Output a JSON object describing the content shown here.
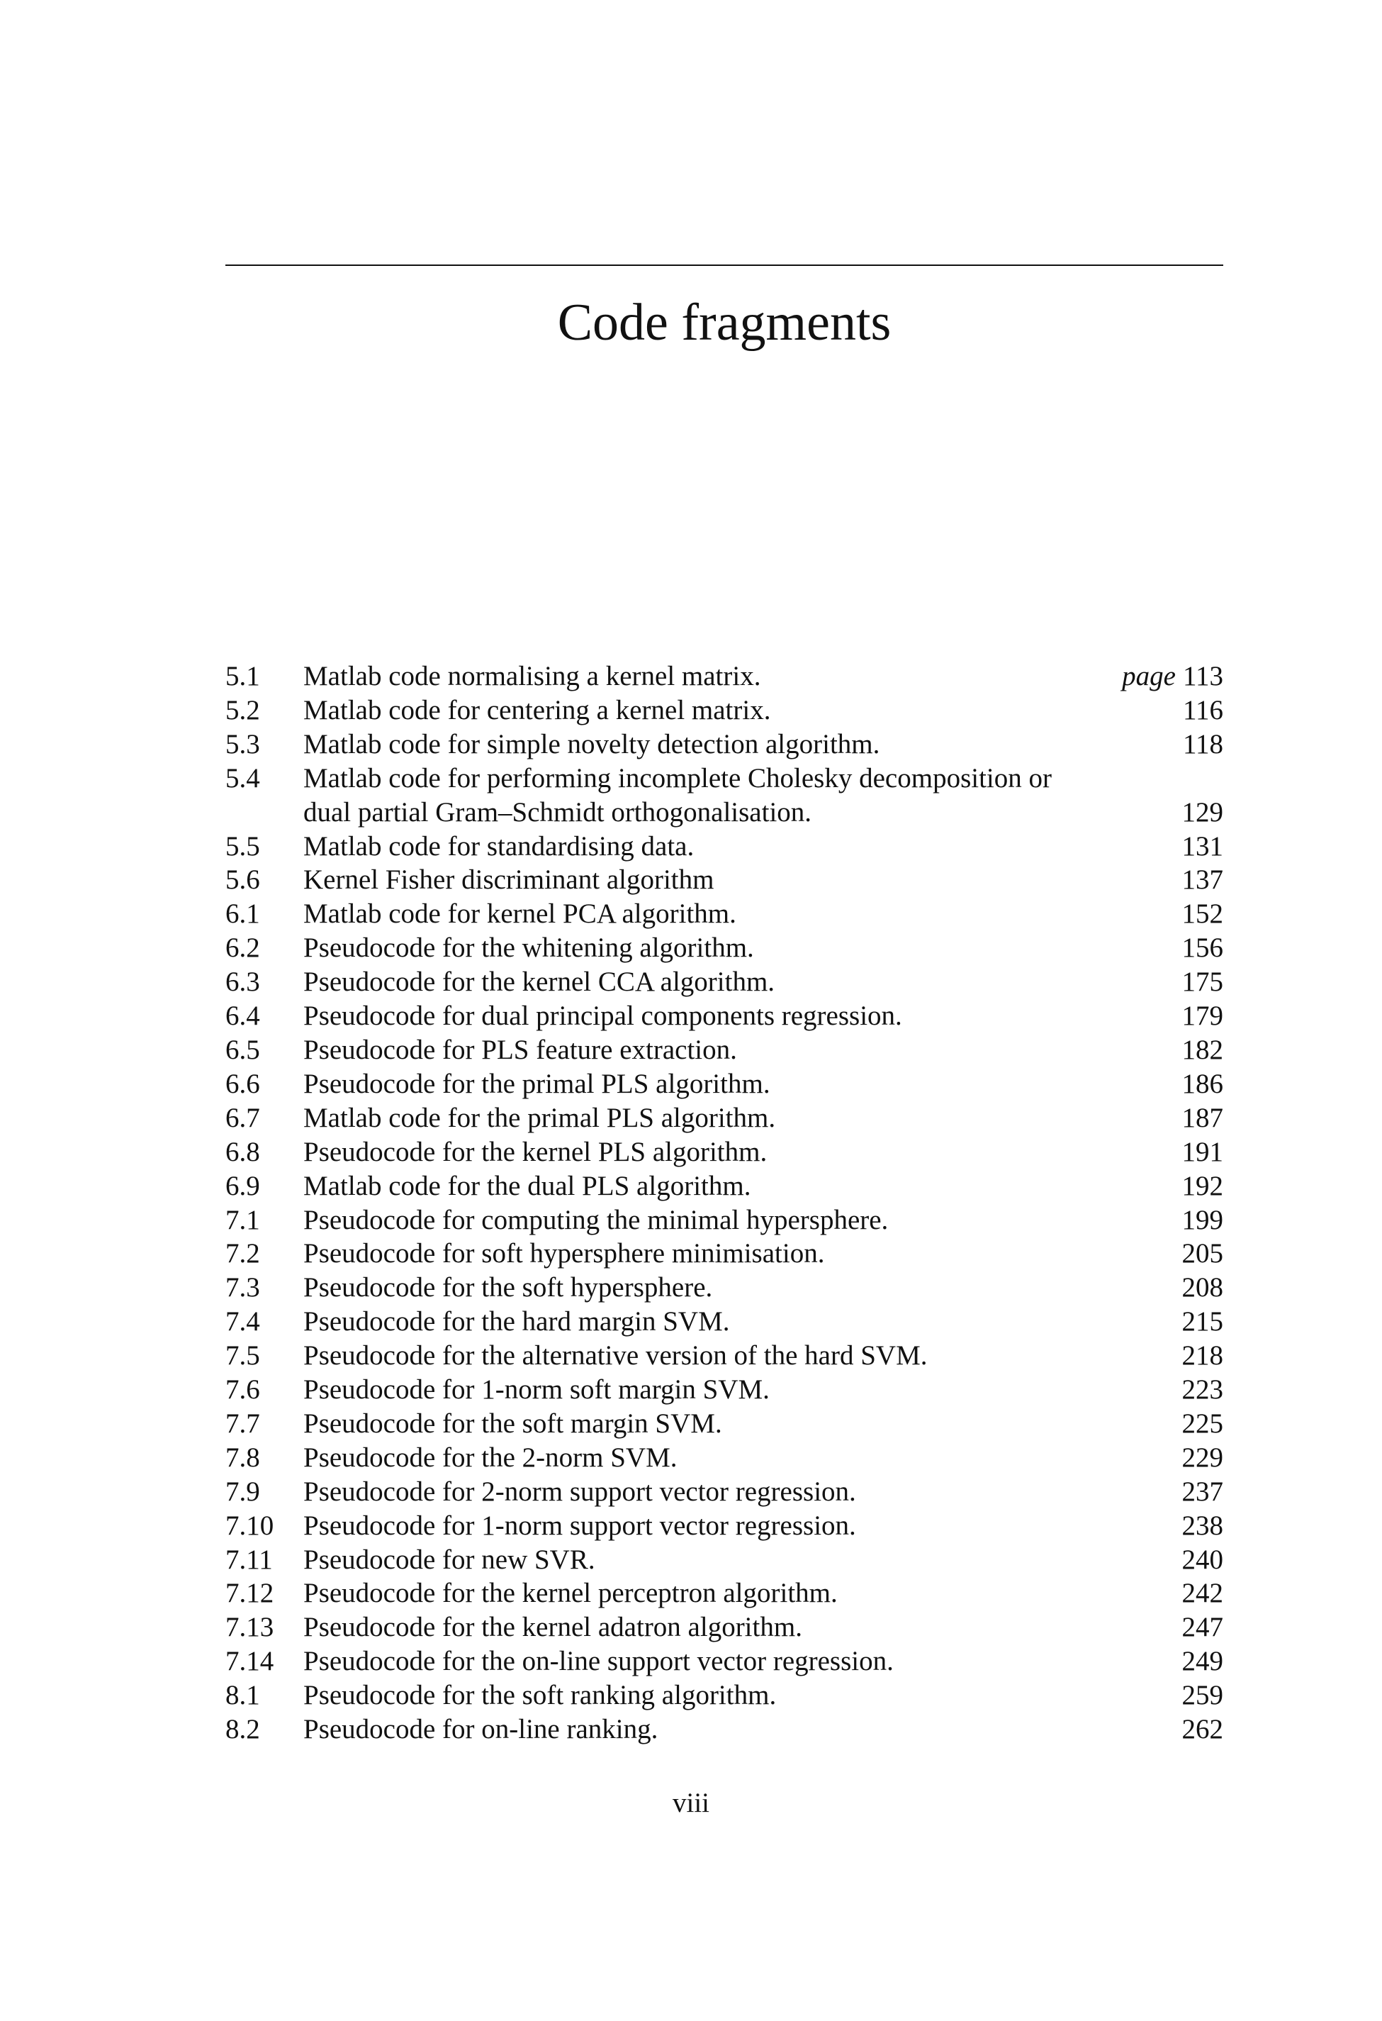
{
  "title": "Code fragments",
  "page_prefix": "page",
  "entries": [
    {
      "num": "5.1",
      "text": "Matlab code normalising a kernel matrix.",
      "page": "113"
    },
    {
      "num": "5.2",
      "text": "Matlab code for centering a kernel matrix.",
      "page": "116"
    },
    {
      "num": "5.3",
      "text": "Matlab code for simple novelty detection algorithm.",
      "page": "118"
    },
    {
      "num": "5.4",
      "text": "Matlab code for performing incomplete Cholesky decomposition or",
      "text2": "dual partial Gram–Schmidt orthogonalisation.",
      "page": "129"
    },
    {
      "num": "5.5",
      "text": "Matlab code for standardising data.",
      "page": "131"
    },
    {
      "num": "5.6",
      "text": "Kernel Fisher discriminant algorithm",
      "page": "137"
    },
    {
      "num": "6.1",
      "text": "Matlab code for kernel PCA algorithm.",
      "page": "152"
    },
    {
      "num": "6.2",
      "text": "Pseudocode for the whitening algorithm.",
      "page": "156"
    },
    {
      "num": "6.3",
      "text": "Pseudocode for the kernel CCA algorithm.",
      "page": "175"
    },
    {
      "num": "6.4",
      "text": "Pseudocode for dual principal components regression.",
      "page": "179"
    },
    {
      "num": "6.5",
      "text": "Pseudocode for PLS feature extraction.",
      "page": "182"
    },
    {
      "num": "6.6",
      "text": "Pseudocode for the primal PLS algorithm.",
      "page": "186"
    },
    {
      "num": "6.7",
      "text": "Matlab code for the primal PLS algorithm.",
      "page": "187"
    },
    {
      "num": "6.8",
      "text": "Pseudocode for the kernel PLS algorithm.",
      "page": "191"
    },
    {
      "num": "6.9",
      "text": "Matlab code for the dual PLS algorithm.",
      "page": "192"
    },
    {
      "num": "7.1",
      "text": "Pseudocode for computing the minimal hypersphere.",
      "page": "199"
    },
    {
      "num": "7.2",
      "text": "Pseudocode for soft hypersphere minimisation.",
      "page": "205"
    },
    {
      "num": "7.3",
      "text": "Pseudocode for the soft hypersphere.",
      "page": "208"
    },
    {
      "num": "7.4",
      "text": "Pseudocode for the hard margin SVM.",
      "page": "215"
    },
    {
      "num": "7.5",
      "text": "Pseudocode for the alternative version of the hard SVM.",
      "page": "218"
    },
    {
      "num": "7.6",
      "text": "Pseudocode for 1-norm soft margin SVM.",
      "page": "223"
    },
    {
      "num": "7.7",
      "text": "Pseudocode for the soft margin SVM.",
      "page": "225"
    },
    {
      "num": "7.8",
      "text": "Pseudocode for the 2-norm SVM.",
      "page": "229"
    },
    {
      "num": "7.9",
      "text": "Pseudocode for 2-norm support vector regression.",
      "page": "237"
    },
    {
      "num": "7.10",
      "text": "Pseudocode for 1-norm support vector regression.",
      "page": "238"
    },
    {
      "num": "7.11",
      "text": "Pseudocode for new SVR.",
      "page": "240"
    },
    {
      "num": "7.12",
      "text": "Pseudocode for the kernel perceptron algorithm.",
      "page": "242"
    },
    {
      "num": "7.13",
      "text": "Pseudocode for the kernel adatron algorithm.",
      "page": "247"
    },
    {
      "num": "7.14",
      "text": "Pseudocode for the on-line support vector regression.",
      "page": "249"
    },
    {
      "num": "8.1",
      "text": "Pseudocode for the soft ranking algorithm.",
      "page": "259"
    },
    {
      "num": "8.2",
      "text": "Pseudocode for on-line ranking.",
      "page": "262"
    }
  ],
  "folio": "viii"
}
